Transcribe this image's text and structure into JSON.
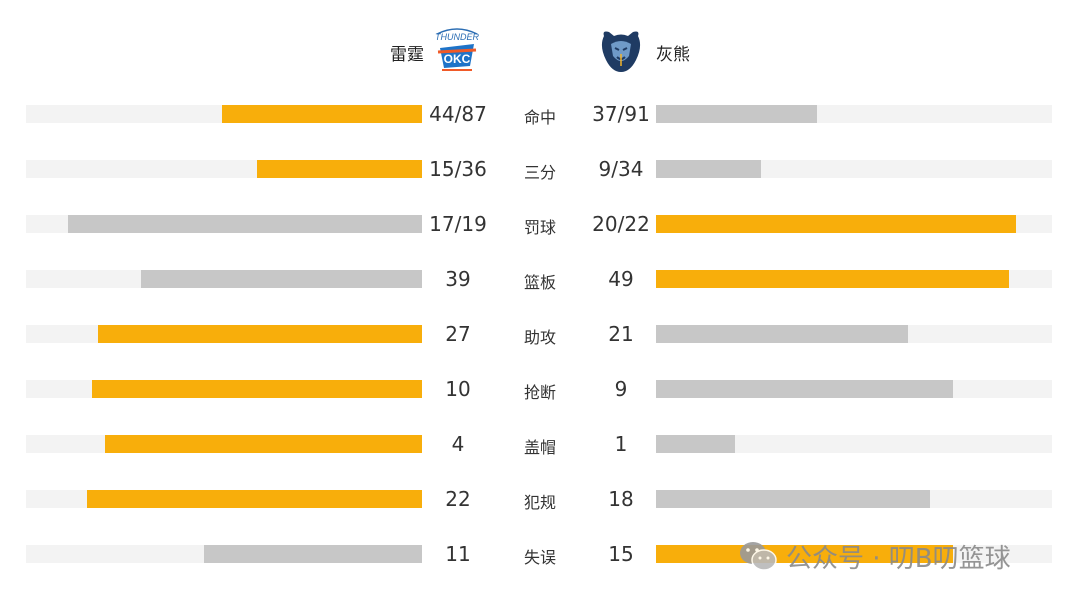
{
  "teams": {
    "left": "雷霆",
    "right": "灰熊"
  },
  "colors": {
    "leader": "#F8AE0B",
    "other": "#C7C7C7",
    "track": "#F3F3F3"
  },
  "chart_data": {
    "type": "bar",
    "categories": [
      "命中",
      "三分",
      "罚球",
      "篮板",
      "助攻",
      "抢断",
      "盖帽",
      "犯规",
      "失误"
    ],
    "left_labels": [
      "44/87",
      "15/36",
      "17/19",
      "39",
      "27",
      "10",
      "4",
      "22",
      "11"
    ],
    "right_labels": [
      "37/91",
      "9/34",
      "20/22",
      "49",
      "21",
      "9",
      "1",
      "18",
      "15"
    ],
    "series": [
      {
        "name": "雷霆",
        "values": [
          0.506,
          0.417,
          0.895,
          39,
          27,
          10,
          4,
          22,
          11
        ]
      },
      {
        "name": "灰熊",
        "values": [
          0.407,
          0.265,
          0.909,
          49,
          21,
          9,
          1,
          18,
          15
        ]
      }
    ],
    "scale_max": [
      1,
      1,
      1,
      55,
      33,
      12,
      5,
      26,
      20
    ],
    "leader": [
      "left",
      "left",
      "right",
      "right",
      "left",
      "left",
      "left",
      "left",
      "right"
    ]
  },
  "watermark": {
    "icon": "wechat-icon",
    "text": "公众号 · 叨B叨篮球"
  }
}
